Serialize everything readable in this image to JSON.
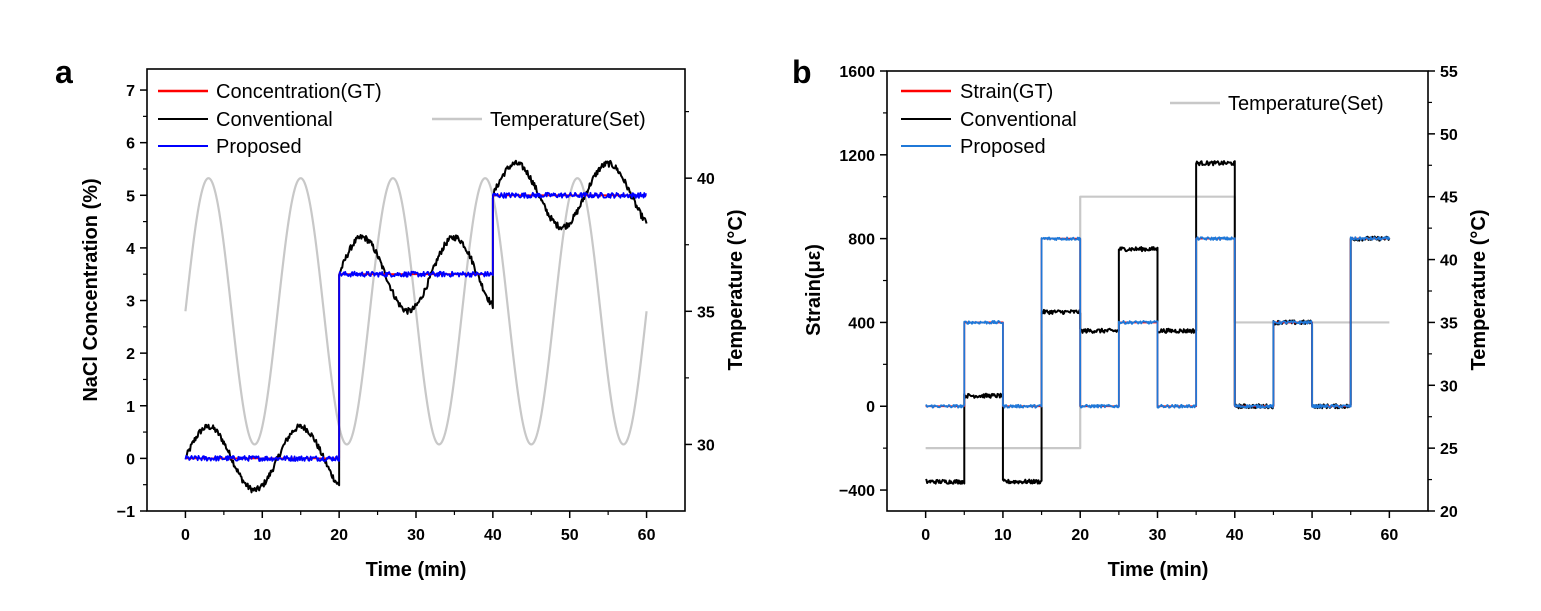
{
  "chart_data": [
    {
      "type": "line",
      "panel_label": "a",
      "xlabel": "Time (min)",
      "ylabel": "NaCl Concentration (%)",
      "y2label": "Temperature (°C)",
      "xlim": [
        -5,
        65
      ],
      "ylim": [
        -1,
        7.4
      ],
      "y2lim": [
        27.5,
        44.1
      ],
      "x_ticks": [
        0,
        10,
        20,
        30,
        40,
        50,
        60
      ],
      "y_ticks": [
        -1,
        0,
        1,
        2,
        3,
        4,
        5,
        6,
        7
      ],
      "y2_ticks": [
        30,
        35,
        40
      ],
      "series": [
        {
          "name": "Concentration(GT)",
          "color": "#ff0000",
          "axis": "left",
          "points": [
            [
              0,
              0
            ],
            [
              20,
              0
            ],
            [
              20,
              3.5
            ],
            [
              40,
              3.5
            ],
            [
              40,
              5
            ],
            [
              60,
              5
            ]
          ]
        },
        {
          "name": "Conventional",
          "color": "#000000",
          "axis": "left",
          "segments": [
            [
              0,
              20,
              0,
              0.6
            ],
            [
              20,
              40,
              3.5,
              0.7
            ],
            [
              40,
              60,
              5,
              0.6
            ]
          ],
          "noise": 0.06
        },
        {
          "name": "Proposed",
          "color": "#0000ff",
          "axis": "left",
          "segments": [
            [
              0,
              20,
              0,
              0
            ],
            [
              20,
              40,
              3.5,
              0
            ],
            [
              40,
              60,
              5,
              0
            ]
          ],
          "noise": 0.05
        },
        {
          "name": "Temperature(Set)",
          "color": "#c8c8c8",
          "axis": "right",
          "sine": {
            "offset": 35,
            "amplitude": 5,
            "period_min": 12,
            "x_start": 0,
            "x_end": 60
          }
        }
      ]
    },
    {
      "type": "line",
      "panel_label": "b",
      "xlabel": "Time (min)",
      "ylabel": "Strain(με)",
      "y2label": "Temperature (°C)",
      "xlim": [
        -5,
        65
      ],
      "ylim": [
        -500,
        1600
      ],
      "y2lim": [
        20,
        55
      ],
      "x_ticks": [
        0,
        10,
        20,
        30,
        40,
        50,
        60
      ],
      "y_ticks": [
        -400,
        0,
        400,
        800,
        1200,
        1600
      ],
      "y2_ticks": [
        20,
        25,
        30,
        35,
        40,
        45,
        50,
        55
      ],
      "series": [
        {
          "name": "Strain(GT)",
          "color": "#ff0000",
          "axis": "left",
          "steps": [
            [
              0,
              0
            ],
            [
              5,
              400
            ],
            [
              10,
              0
            ],
            [
              15,
              800
            ],
            [
              20,
              0
            ],
            [
              25,
              400
            ],
            [
              30,
              0
            ],
            [
              35,
              800
            ],
            [
              40,
              0
            ],
            [
              45,
              400
            ],
            [
              50,
              0
            ],
            [
              55,
              800
            ]
          ],
          "x_end": 60
        },
        {
          "name": "Conventional",
          "color": "#000000",
          "axis": "left",
          "steps": [
            [
              0,
              -360
            ],
            [
              5,
              50
            ],
            [
              10,
              -360
            ],
            [
              15,
              450
            ],
            [
              20,
              360
            ],
            [
              25,
              750
            ],
            [
              30,
              360
            ],
            [
              35,
              1160
            ],
            [
              40,
              0
            ],
            [
              45,
              400
            ],
            [
              50,
              0
            ],
            [
              55,
              800
            ]
          ],
          "x_end": 60,
          "noise": 10
        },
        {
          "name": "Proposed",
          "color": "#1f78d8",
          "axis": "left",
          "steps": [
            [
              0,
              0
            ],
            [
              5,
              400
            ],
            [
              10,
              0
            ],
            [
              15,
              800
            ],
            [
              20,
              0
            ],
            [
              25,
              400
            ],
            [
              30,
              0
            ],
            [
              35,
              800
            ],
            [
              40,
              0
            ],
            [
              45,
              400
            ],
            [
              50,
              0
            ],
            [
              55,
              800
            ]
          ],
          "x_end": 60,
          "noise": 7
        },
        {
          "name": "Temperature(Set)",
          "color": "#c8c8c8",
          "axis": "right",
          "steps": [
            [
              0,
              25
            ],
            [
              20,
              45
            ],
            [
              40,
              35
            ]
          ],
          "x_end": 60
        }
      ]
    }
  ]
}
